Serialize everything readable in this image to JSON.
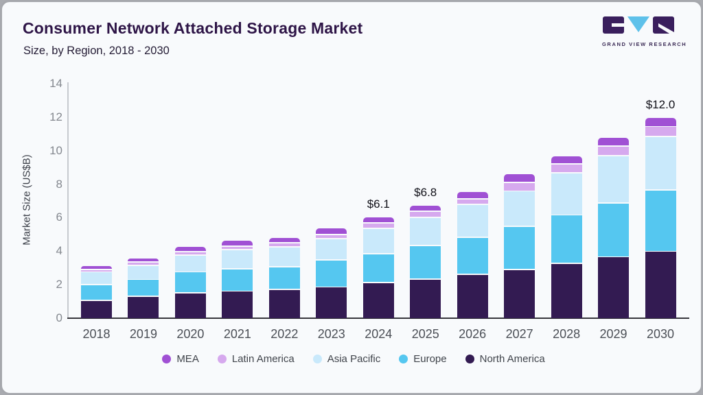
{
  "header": {
    "title": "Consumer Network Attached Storage Market",
    "subtitle": "Size, by Region, 2018 - 2030",
    "logo_text": "GRAND VIEW RESEARCH"
  },
  "colors": {
    "card_background": "#f8fafc",
    "title_text": "#2e1547",
    "y_axis_line": "#c7cacf",
    "x_axis_line": "#36363b",
    "tick_label": "#84888f",
    "logo_purple": "#3a1f5d",
    "logo_blue": "#5ec1ea"
  },
  "chart_data": {
    "type": "bar",
    "stacked": true,
    "title": "Consumer Network Attached Storage Market",
    "subtitle": "Size, by Region, 2018 - 2030",
    "xlabel": "",
    "ylabel": "Market Size (US$B)",
    "ylim": [
      0,
      14
    ],
    "yticks": [
      0,
      2,
      4,
      6,
      8,
      10,
      12,
      14
    ],
    "grid": false,
    "legend_position": "bottom",
    "categories": [
      "2018",
      "2019",
      "2020",
      "2021",
      "2022",
      "2023",
      "2024",
      "2025",
      "2026",
      "2027",
      "2028",
      "2029",
      "2030"
    ],
    "series": [
      {
        "name": "North America",
        "color": "#331b52",
        "values": [
          1.1,
          1.35,
          1.55,
          1.65,
          1.75,
          1.9,
          2.15,
          2.36,
          2.65,
          2.93,
          3.3,
          3.7,
          4.03
        ]
      },
      {
        "name": "Europe",
        "color": "#55c7f0",
        "values": [
          0.95,
          1.0,
          1.25,
          1.35,
          1.37,
          1.62,
          1.75,
          2.0,
          2.22,
          2.58,
          2.9,
          3.23,
          3.65
        ]
      },
      {
        "name": "Asia Pacific",
        "color": "#c9e9fb",
        "values": [
          0.75,
          0.85,
          1.0,
          1.12,
          1.18,
          1.25,
          1.5,
          1.7,
          1.95,
          2.12,
          2.52,
          2.82,
          3.2
        ]
      },
      {
        "name": "Latin America",
        "color": "#d6a9ee",
        "values": [
          0.15,
          0.18,
          0.2,
          0.22,
          0.25,
          0.27,
          0.33,
          0.37,
          0.34,
          0.52,
          0.52,
          0.55,
          0.6
        ]
      },
      {
        "name": "MEA",
        "color": "#a050d4",
        "values": [
          0.25,
          0.25,
          0.35,
          0.36,
          0.33,
          0.4,
          0.37,
          0.37,
          0.45,
          0.51,
          0.5,
          0.52,
          0.55
        ]
      }
    ],
    "legend_order": [
      "MEA",
      "Latin America",
      "Asia Pacific",
      "Europe",
      "North America"
    ],
    "annotations": [
      {
        "category": "2024",
        "text": "$6.1"
      },
      {
        "category": "2025",
        "text": "$6.8"
      },
      {
        "category": "2030",
        "text": "$12.0"
      }
    ]
  }
}
